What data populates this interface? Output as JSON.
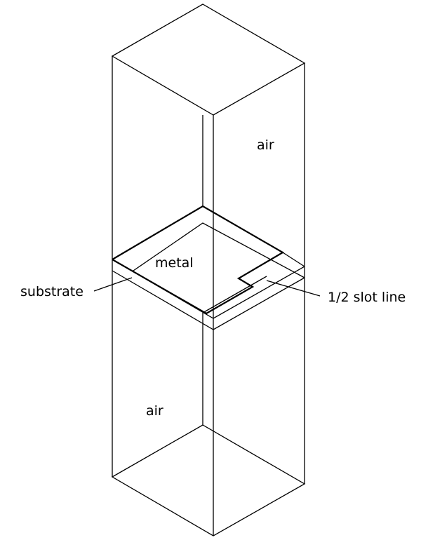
{
  "labels": {
    "air_top": "air",
    "metal": "metal",
    "substrate": "substrate",
    "slot_line": "1/2 slot line",
    "air_bottom": "air"
  },
  "colors": {
    "stroke": "#000000",
    "background": "#ffffff"
  }
}
